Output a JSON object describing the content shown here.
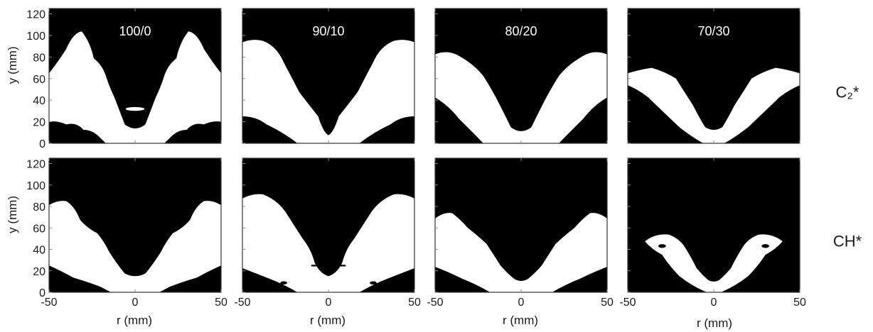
{
  "figure": {
    "ratio_labels": [
      "100/0",
      "90/10",
      "80/20",
      "70/30"
    ],
    "row_labels": [
      "C₂*",
      "CH*"
    ],
    "y_axis_label": "y (mm)",
    "x_axis_label": "r (mm)",
    "y_ticks": [
      "0",
      "20",
      "40",
      "60",
      "80",
      "100",
      "120"
    ],
    "x_ticks": [
      "-50",
      "0",
      "50"
    ],
    "colors": {
      "flame": "#ffffff",
      "background": "#000000",
      "axis": "#333333"
    }
  }
}
